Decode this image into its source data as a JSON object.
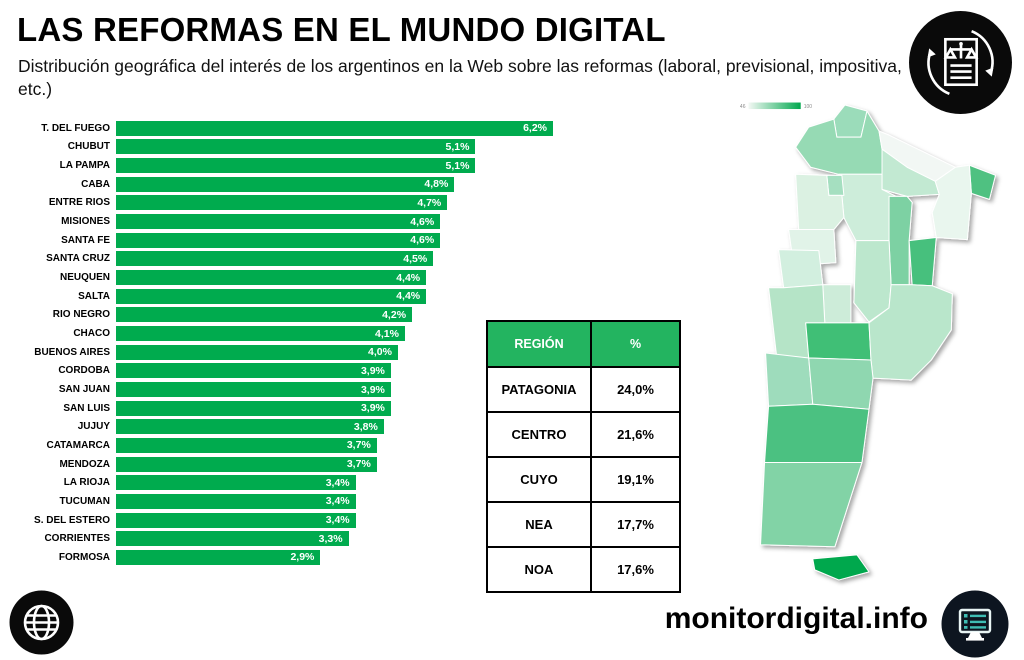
{
  "header": {
    "title": "LAS REFORMAS EN EL MUNDO DIGITAL",
    "subtitle": "Distribución geográfica del interés de los argentinos en la Web sobre las reformas (laboral, previsional, impositiva, etc.)"
  },
  "colors": {
    "bar_green": "#00ab4e",
    "table_green": "#23b460",
    "map_min": "#f3f8f4",
    "map_max": "#00a84e",
    "badge_black": "#0a0a0a",
    "monitor_badge_bg": "#0d1520",
    "monitor_teal": "#3fbdb4"
  },
  "chart_data": [
    {
      "type": "bar",
      "orientation": "horizontal",
      "title": "",
      "xlabel": "",
      "ylabel": "",
      "xlim": [
        0,
        6.2
      ],
      "grid": false,
      "categories": [
        "T. DEL FUEGO",
        "CHUBUT",
        "LA PAMPA",
        "CABA",
        "ENTRE RIOS",
        "MISIONES",
        "SANTA FE",
        "SANTA CRUZ",
        "NEUQUEN",
        "SALTA",
        "RIO NEGRO",
        "CHACO",
        "BUENOS AIRES",
        "CORDOBA",
        "SAN JUAN",
        "SAN LUIS",
        "JUJUY",
        "CATAMARCA",
        "MENDOZA",
        "LA RIOJA",
        "TUCUMAN",
        "S. DEL ESTERO",
        "CORRIENTES",
        "FORMOSA"
      ],
      "values": [
        6.2,
        5.1,
        5.1,
        4.8,
        4.7,
        4.6,
        4.6,
        4.5,
        4.4,
        4.4,
        4.2,
        4.1,
        4.0,
        3.9,
        3.9,
        3.9,
        3.8,
        3.7,
        3.7,
        3.4,
        3.4,
        3.4,
        3.3,
        2.9
      ],
      "value_labels": [
        "6,2%",
        "5,1%",
        "5,1%",
        "4,8%",
        "4,7%",
        "4,6%",
        "4,6%",
        "4,5%",
        "4,4%",
        "4,4%",
        "4,2%",
        "4,1%",
        "4,0%",
        "3,9%",
        "3,9%",
        "3,9%",
        "3,8%",
        "3,7%",
        "3,7%",
        "3,4%",
        "3,4%",
        "3,4%",
        "3,3%",
        "2,9%"
      ]
    },
    {
      "type": "table",
      "headers": [
        "REGIÓN",
        "%"
      ],
      "rows": [
        [
          "PATAGONIA",
          "24,0%"
        ],
        [
          "CENTRO",
          "21,6%"
        ],
        [
          "CUYO",
          "19,1%"
        ],
        [
          "NEA",
          "17,7%"
        ],
        [
          "NOA",
          "17,6%"
        ]
      ]
    }
  ],
  "map": {
    "type": "choropleth",
    "legend": {
      "min": "46",
      "max": "100"
    },
    "provinces": {
      "jujuy": "#9bdcba",
      "salta": "#96dab4",
      "formosa": "#f2f7f4",
      "chaco": "#c2e9d2",
      "misiones": "#4fc181",
      "corrientes": "#e9f6ee",
      "santiago_del_estero": "#cdedda",
      "tucuman": "#a5dfc0",
      "catamarca": "#dbf1e2",
      "la_rioja": "#e1f3e8",
      "santa_fe": "#7dd1a3",
      "entre_rios": "#46c07d",
      "cordoba": "#bce7cd",
      "san_juan": "#d2efdf",
      "san_luis": "#cdecd9",
      "mendoza": "#b5e4c7",
      "la_pampa": "#3fbf76",
      "buenos_aires": "#b9e6cb",
      "neuquen": "#9edcbc",
      "rio_negro": "#8fd7b0",
      "chubut": "#4cc181",
      "santa_cruz": "#82d3a6",
      "tierra_del_fuego": "#00a84e"
    }
  },
  "footer": {
    "site": "monitordigital.info"
  },
  "icons": {
    "top_right": "reform-document-scales-icon",
    "bottom_left": "globe-icon",
    "bottom_right": "computer-monitor-icon"
  }
}
